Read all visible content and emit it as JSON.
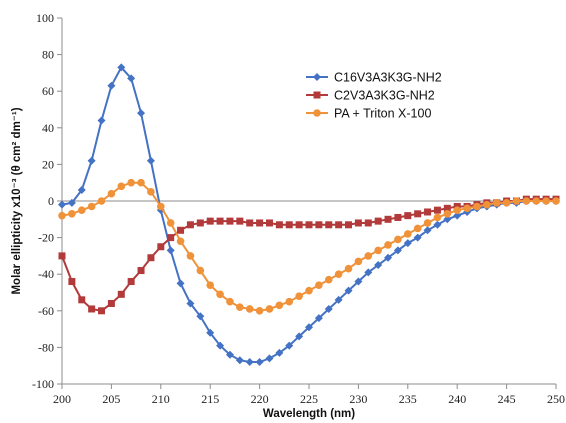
{
  "chart_data": {
    "type": "line",
    "title": "",
    "xlabel": "Wavelength (nm)",
    "ylabel": "Molar ellipticity x10⁻³ (θ cm² dm⁻¹)",
    "xlim": [
      200,
      250
    ],
    "ylim": [
      -100,
      100
    ],
    "x_ticks": [
      200,
      205,
      210,
      215,
      220,
      225,
      230,
      235,
      240,
      245,
      250
    ],
    "y_ticks": [
      -100,
      -80,
      -60,
      -40,
      -20,
      0,
      20,
      40,
      60,
      80,
      100
    ],
    "grid": false,
    "legend_position": "top-right",
    "x": [
      200,
      201,
      202,
      203,
      204,
      205,
      206,
      207,
      208,
      209,
      210,
      211,
      212,
      213,
      214,
      215,
      216,
      217,
      218,
      219,
      220,
      221,
      222,
      223,
      224,
      225,
      226,
      227,
      228,
      229,
      230,
      231,
      232,
      233,
      234,
      235,
      236,
      237,
      238,
      239,
      240,
      241,
      242,
      243,
      244,
      245,
      246,
      247,
      248,
      249,
      250
    ],
    "series": [
      {
        "name": "C16V3A3K3G-NH2",
        "color": "#4472C4",
        "marker": "diamond",
        "values": [
          -2,
          -1,
          6,
          22,
          44,
          63,
          73,
          67,
          48,
          22,
          -5,
          -27,
          -45,
          -56,
          -63,
          -72,
          -79,
          -84,
          -87,
          -88,
          -88,
          -86,
          -83,
          -79,
          -74,
          -69,
          -64,
          -59,
          -54,
          -49,
          -44,
          -39,
          -35,
          -31,
          -27,
          -23,
          -20,
          -16,
          -13,
          -10,
          -8,
          -6,
          -4,
          -3,
          -2,
          -1,
          -1,
          0,
          0,
          0,
          0
        ]
      },
      {
        "name": "C2V3A3K3G-NH2",
        "color": "#B23A3A",
        "marker": "square",
        "values": [
          -30,
          -44,
          -54,
          -59,
          -60,
          -56,
          -51,
          -44,
          -38,
          -31,
          -25,
          -20,
          -16,
          -13,
          -12,
          -11,
          -11,
          -11,
          -11,
          -12,
          -12,
          -12,
          -13,
          -13,
          -13,
          -13,
          -13,
          -13,
          -13,
          -13,
          -12,
          -12,
          -11,
          -10,
          -9,
          -8,
          -7,
          -6,
          -5,
          -4,
          -3,
          -3,
          -2,
          -1,
          -1,
          0,
          0,
          1,
          1,
          1,
          1
        ]
      },
      {
        "name": "PA + Triton X-100",
        "color": "#F0923A",
        "marker": "circle",
        "values": [
          -8,
          -7,
          -5,
          -3,
          0,
          4,
          8,
          10,
          10,
          5,
          -3,
          -12,
          -22,
          -30,
          -38,
          -46,
          -51,
          -55,
          -58,
          -59,
          -60,
          -59,
          -57,
          -55,
          -52,
          -49,
          -46,
          -43,
          -40,
          -37,
          -33,
          -30,
          -27,
          -24,
          -21,
          -18,
          -15,
          -12,
          -9,
          -7,
          -5,
          -4,
          -3,
          -2,
          -1,
          -1,
          0,
          0,
          0,
          0,
          0
        ]
      }
    ]
  }
}
